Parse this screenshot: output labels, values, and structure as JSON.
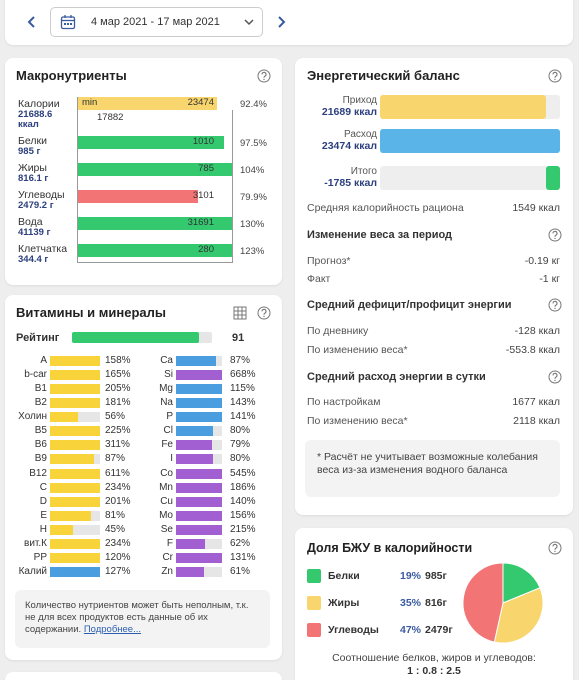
{
  "date_range": "4 мар 2021 - 17 мар 2021",
  "macros": {
    "title": "Макронутриенты",
    "rows": [
      {
        "name": "Калории",
        "amount": "21688.6 ккал",
        "pct": 92.4,
        "pct_label": "92.4%",
        "norm": 23474,
        "min_label": "min",
        "min_value": 17882,
        "color": "#f8d66d"
      },
      {
        "name": "Белки",
        "amount": "985 г",
        "pct": 97.5,
        "pct_label": "97.5%",
        "norm": 1010,
        "color": "#34c96f"
      },
      {
        "name": "Жиры",
        "amount": "816.1 г",
        "pct": 104,
        "pct_label": "104%",
        "norm": 785,
        "color": "#34c96f"
      },
      {
        "name": "Углеводы",
        "amount": "2479.2 г",
        "pct": 79.9,
        "pct_label": "79.9%",
        "norm": 3101,
        "color": "#f27474"
      },
      {
        "name": "Вода",
        "amount": "41139 г",
        "pct": 130,
        "pct_label": "130%",
        "norm": 31691,
        "color": "#34c96f"
      },
      {
        "name": "Клетчатка",
        "amount": "344.4 г",
        "pct": 123,
        "pct_label": "123%",
        "norm": 280,
        "color": "#34c96f"
      }
    ]
  },
  "vitamins": {
    "title": "Витамины и минералы",
    "rating_label": "Рейтинг",
    "rating": 91,
    "rating_color": "#34c96f",
    "left": [
      {
        "name": "A",
        "pct": 158,
        "pct_label": "158%",
        "color": "#f8d43a"
      },
      {
        "name": "b-car",
        "pct": 165,
        "pct_label": "165%",
        "color": "#f8d43a"
      },
      {
        "name": "B1",
        "pct": 205,
        "pct_label": "205%",
        "color": "#f8d43a"
      },
      {
        "name": "B2",
        "pct": 181,
        "pct_label": "181%",
        "color": "#f8d43a"
      },
      {
        "name": "Холин",
        "pct": 56,
        "pct_label": "56%",
        "color": "#f8d43a"
      },
      {
        "name": "B5",
        "pct": 225,
        "pct_label": "225%",
        "color": "#f8d43a"
      },
      {
        "name": "B6",
        "pct": 311,
        "pct_label": "311%",
        "color": "#f8d43a"
      },
      {
        "name": "B9",
        "pct": 87,
        "pct_label": "87%",
        "color": "#f8d43a"
      },
      {
        "name": "B12",
        "pct": 611,
        "pct_label": "611%",
        "color": "#f8d43a"
      },
      {
        "name": "C",
        "pct": 234,
        "pct_label": "234%",
        "color": "#f8d43a"
      },
      {
        "name": "D",
        "pct": 201,
        "pct_label": "201%",
        "color": "#f8d43a"
      },
      {
        "name": "E",
        "pct": 81,
        "pct_label": "81%",
        "color": "#f8d43a"
      },
      {
        "name": "H",
        "pct": 45,
        "pct_label": "45%",
        "color": "#f8d43a"
      },
      {
        "name": "вит.К",
        "pct": 234,
        "pct_label": "234%",
        "color": "#f8d43a"
      },
      {
        "name": "PP",
        "pct": 120,
        "pct_label": "120%",
        "color": "#f8d43a"
      },
      {
        "name": "Калий",
        "pct": 127,
        "pct_label": "127%",
        "color": "#4a9ee0"
      }
    ],
    "right": [
      {
        "name": "Ca",
        "pct": 87,
        "pct_label": "87%",
        "color": "#4a9ee0"
      },
      {
        "name": "Si",
        "pct": 668,
        "pct_label": "668%",
        "color": "#a25fd2"
      },
      {
        "name": "Mg",
        "pct": 115,
        "pct_label": "115%",
        "color": "#4a9ee0"
      },
      {
        "name": "Na",
        "pct": 143,
        "pct_label": "143%",
        "color": "#4a9ee0"
      },
      {
        "name": "P",
        "pct": 141,
        "pct_label": "141%",
        "color": "#4a9ee0"
      },
      {
        "name": "Cl",
        "pct": 80,
        "pct_label": "80%",
        "color": "#4a9ee0"
      },
      {
        "name": "Fe",
        "pct": 79,
        "pct_label": "79%",
        "color": "#a25fd2"
      },
      {
        "name": "I",
        "pct": 80,
        "pct_label": "80%",
        "color": "#a25fd2"
      },
      {
        "name": "Co",
        "pct": 545,
        "pct_label": "545%",
        "color": "#a25fd2"
      },
      {
        "name": "Mn",
        "pct": 186,
        "pct_label": "186%",
        "color": "#a25fd2"
      },
      {
        "name": "Cu",
        "pct": 140,
        "pct_label": "140%",
        "color": "#a25fd2"
      },
      {
        "name": "Mo",
        "pct": 156,
        "pct_label": "156%",
        "color": "#a25fd2"
      },
      {
        "name": "Se",
        "pct": 215,
        "pct_label": "215%",
        "color": "#a25fd2"
      },
      {
        "name": "F",
        "pct": 62,
        "pct_label": "62%",
        "color": "#a25fd2"
      },
      {
        "name": "Cr",
        "pct": 131,
        "pct_label": "131%",
        "color": "#a25fd2"
      },
      {
        "name": "Zn",
        "pct": 61,
        "pct_label": "61%",
        "color": "#a25fd2"
      }
    ],
    "note": "Количество нутриентов может быть неполным, т.к. не для всех продуктов есть данные об их содержании.",
    "note_link": "Подробнее..."
  },
  "energy": {
    "title": "Энергетический баланс",
    "bars": [
      {
        "label": "Приход",
        "value": 21689,
        "value_label": "21689 ккал",
        "color": "#f8d66d"
      },
      {
        "label": "Расход",
        "value": 23474,
        "value_label": "23474 ккал",
        "color": "#5ab4e8"
      },
      {
        "label": "Итого",
        "value": -1785,
        "value_label": "-1785 ккал",
        "color": "#34c96f"
      }
    ],
    "avg": {
      "label": "Средняя калорийность рациона",
      "value": "1549 ккал"
    },
    "sections": [
      {
        "title": "Изменение веса за период",
        "rows": [
          {
            "label": "Прогноз*",
            "value": "-0.19 кг"
          },
          {
            "label": "Факт",
            "value": "-1 кг"
          }
        ]
      },
      {
        "title": "Средний дефицит/профицит энергии",
        "rows": [
          {
            "label": "По дневнику",
            "value": "-128 ккал"
          },
          {
            "label": "По изменению веса*",
            "value": "-553.8 ккал"
          }
        ]
      },
      {
        "title": "Средний расход энергии в сутки",
        "rows": [
          {
            "label": "По настройкам",
            "value": "1677 ккал"
          },
          {
            "label": "По изменению веса*",
            "value": "2118 ккал"
          }
        ]
      }
    ],
    "note": "* Расчёт не учитывает возможные колебания веса из-за изменения водного баланса"
  },
  "bju": {
    "title": "Доля БЖУ в калорийности",
    "items": [
      {
        "name": "Белки",
        "pct": 19,
        "pct_label": "19%",
        "grams": "985г",
        "color": "#34c96f"
      },
      {
        "name": "Жиры",
        "pct": 35,
        "pct_label": "35%",
        "grams": "816г",
        "color": "#f8d66d"
      },
      {
        "name": "Углеводы",
        "pct": 47,
        "pct_label": "47%",
        "grams": "2479г",
        "color": "#f27474"
      }
    ],
    "ratio_label": "Соотношение белков, жиров и углеводов:",
    "ratio": "1 : 0.8 : 2.5"
  }
}
